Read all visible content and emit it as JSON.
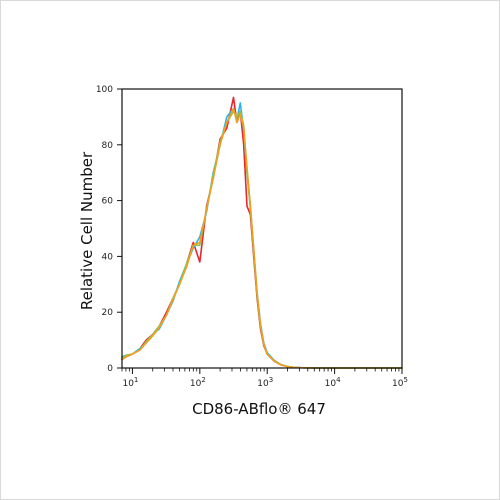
{
  "chart_data": {
    "type": "line",
    "xlabel": "CD86-ABflo® 647",
    "ylabel": "Relative Cell Number",
    "x_scale": "log",
    "xlim": [
      7,
      100000
    ],
    "ylim": [
      0,
      100
    ],
    "x_ticks": [
      {
        "value": 10,
        "base": "10",
        "exp": "1"
      },
      {
        "value": 100,
        "base": "10",
        "exp": "2"
      },
      {
        "value": 1000,
        "base": "10",
        "exp": "3"
      },
      {
        "value": 10000,
        "base": "10",
        "exp": "4"
      },
      {
        "value": 100000,
        "base": "10",
        "exp": "5"
      }
    ],
    "y_ticks": [
      "0",
      "20",
      "40",
      "60",
      "80",
      "100"
    ],
    "grid": false,
    "legend": "none",
    "series": [
      {
        "color": "#e8262d",
        "x": [
          7,
          8,
          10,
          13,
          16,
          20,
          25,
          32,
          40,
          50,
          63,
          80,
          100,
          126,
          158,
          200,
          251,
          316,
          355,
          398,
          447,
          501,
          562,
          631,
          708,
          794,
          891,
          1000,
          1259,
          1585,
          2000,
          2512,
          3162,
          5000,
          10000,
          100000
        ],
        "y": [
          3,
          4,
          5,
          7,
          10,
          12,
          15,
          20,
          25,
          30,
          37,
          45,
          38,
          58,
          68,
          82,
          86,
          97,
          88,
          92,
          80,
          58,
          55,
          40,
          25,
          14,
          8,
          5,
          2.5,
          1.2,
          0.5,
          0.2,
          0.1,
          0,
          0,
          0
        ]
      },
      {
        "color": "#29b6e6",
        "x": [
          7,
          8,
          10,
          13,
          16,
          20,
          25,
          32,
          40,
          50,
          63,
          80,
          100,
          126,
          158,
          200,
          251,
          316,
          355,
          398,
          447,
          501,
          562,
          631,
          708,
          794,
          891,
          1000,
          1259,
          1585,
          2000,
          2512,
          3162,
          5000,
          10000,
          100000
        ],
        "y": [
          4,
          4.5,
          5,
          7,
          9,
          12,
          14,
          19,
          24,
          31,
          37,
          43,
          47,
          56,
          70,
          80,
          90,
          93,
          89,
          95,
          85,
          70,
          58,
          42,
          27,
          16,
          9,
          5.5,
          2.8,
          1.3,
          0.5,
          0.2,
          0.1,
          0,
          0,
          0
        ]
      },
      {
        "color": "#8bc34a",
        "x": [
          7,
          8,
          10,
          13,
          16,
          20,
          25,
          32,
          40,
          50,
          63,
          80,
          100,
          126,
          158,
          200,
          251,
          316,
          355,
          398,
          447,
          501,
          562,
          631,
          708,
          794,
          891,
          1000,
          1259,
          1585,
          2000,
          2512,
          3162,
          5000,
          10000,
          100000
        ],
        "y": [
          3.5,
          4.5,
          5,
          6.5,
          9.5,
          12,
          15,
          19,
          25,
          30,
          37,
          44,
          44,
          57,
          69,
          81,
          88,
          92,
          90,
          92,
          87,
          70,
          57,
          42,
          26,
          15,
          8.5,
          5,
          2.6,
          1.2,
          0.5,
          0.2,
          0.1,
          0,
          0,
          0
        ]
      },
      {
        "color": "#f0a01f",
        "x": [
          7,
          8,
          10,
          13,
          16,
          20,
          25,
          32,
          40,
          50,
          63,
          80,
          100,
          126,
          158,
          200,
          251,
          316,
          355,
          398,
          447,
          501,
          562,
          631,
          708,
          794,
          891,
          1000,
          1259,
          1585,
          2000,
          2512,
          3162,
          5000,
          10000,
          100000
        ],
        "y": [
          3,
          4,
          5,
          6.5,
          9,
          11.5,
          14.5,
          19,
          24.5,
          30,
          36,
          44,
          45,
          57,
          68,
          80,
          88,
          93,
          88,
          91,
          86,
          72,
          58,
          43,
          27,
          15.5,
          8.5,
          5,
          2.6,
          1.2,
          0.5,
          0.2,
          0.1,
          0,
          0,
          0
        ]
      }
    ]
  }
}
